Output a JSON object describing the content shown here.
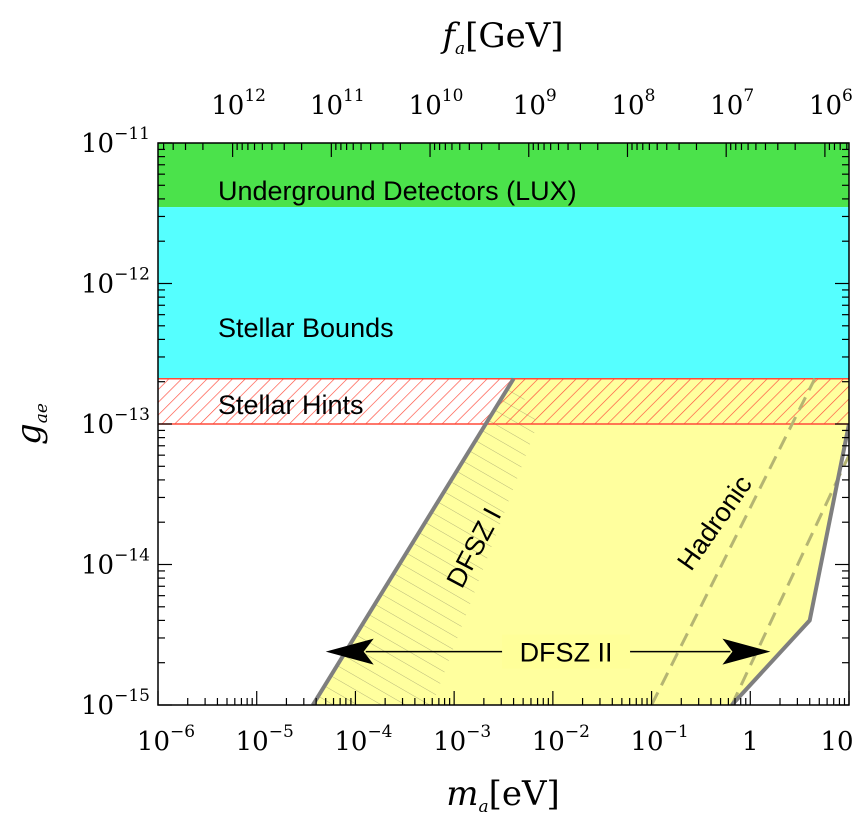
{
  "chart_data": {
    "type": "area",
    "title": "",
    "xlabel": "m",
    "xlabel_sub": "a",
    "xlabel_unit": "[eV]",
    "ylabel": "g",
    "ylabel_sub": "ae",
    "top_label": "f",
    "top_label_sub": "a",
    "top_label_unit": "[GeV]",
    "x_scale": "log",
    "y_scale": "log",
    "xlim": [
      1e-06,
      10
    ],
    "ylim": [
      1e-15,
      1e-11
    ],
    "grid": false,
    "legend": "none",
    "x_ticks": [
      {
        "value": 1e-06,
        "base": "10",
        "exp": "−6"
      },
      {
        "value": 1e-05,
        "base": "10",
        "exp": "−5"
      },
      {
        "value": 0.0001,
        "base": "10",
        "exp": "−4"
      },
      {
        "value": 0.001,
        "base": "10",
        "exp": "−3"
      },
      {
        "value": 0.01,
        "base": "10",
        "exp": "−2"
      },
      {
        "value": 0.1,
        "base": "10",
        "exp": "−1"
      },
      {
        "value": 1,
        "base": "1",
        "exp": ""
      },
      {
        "value": 10,
        "base": "10",
        "exp": ""
      }
    ],
    "y_ticks": [
      {
        "value": 1e-15,
        "base": "10",
        "exp": "−15"
      },
      {
        "value": 1e-14,
        "base": "10",
        "exp": "−14"
      },
      {
        "value": 1e-13,
        "base": "10",
        "exp": "−13"
      },
      {
        "value": 1e-12,
        "base": "10",
        "exp": "−12"
      },
      {
        "value": 1e-11,
        "base": "10",
        "exp": "−11"
      }
    ],
    "top_ticks": [
      {
        "fa_gev": 1000000000000.0,
        "ma_ev": 5.7e-06,
        "base": "10",
        "exp": "12"
      },
      {
        "fa_gev": 100000000000.0,
        "ma_ev": 5.7e-05,
        "base": "10",
        "exp": "11"
      },
      {
        "fa_gev": 10000000000.0,
        "ma_ev": 0.00057,
        "base": "10",
        "exp": "10"
      },
      {
        "fa_gev": 1000000000.0,
        "ma_ev": 0.0057,
        "base": "10",
        "exp": "9"
      },
      {
        "fa_gev": 100000000.0,
        "ma_ev": 0.057,
        "base": "10",
        "exp": "8"
      },
      {
        "fa_gev": 10000000.0,
        "ma_ev": 0.57,
        "base": "10",
        "exp": "7"
      },
      {
        "fa_gev": 1000000.0,
        "ma_ev": 5.7,
        "base": "10",
        "exp": "6"
      }
    ],
    "bands": [
      {
        "name": "Underground Detectors (LUX)",
        "y_range": [
          3.5e-12,
          1e-11
        ],
        "color": "#4be24b"
      },
      {
        "name": "Stellar Bounds",
        "y_range": [
          2.1e-13,
          3.5e-12
        ],
        "color": "#55ffff"
      },
      {
        "name": "Stellar Hints",
        "y_range": [
          1e-13,
          2.1e-13
        ],
        "color": "#ff4a3a",
        "style": "hatched"
      }
    ],
    "models": {
      "dfsz_region": [
        [
          3.7e-05,
          1e-15
        ],
        [
          0.004,
          2.1e-13
        ],
        [
          10,
          2.1e-13
        ],
        [
          10,
          1e-13
        ],
        [
          4,
          4e-15
        ],
        [
          0.65,
          1e-15
        ]
      ],
      "dfsz_i_hatched": [
        [
          3.7e-05,
          1e-15
        ],
        [
          0.004,
          2.1e-13
        ],
        [
          0.007,
          1e-13
        ],
        [
          0.0006,
          1e-15
        ]
      ],
      "hadronic_lines": [
        [
          [
            0.1,
            1e-15
          ],
          [
            4.5,
            2.1e-13
          ]
        ],
        [
          [
            0.65,
            1e-15
          ],
          [
            10,
            6e-14
          ]
        ]
      ],
      "color": "#ffff99",
      "dfsz_ii_arrow": {
        "x_range": [
          5e-05,
          1.6
        ],
        "y": 2.4e-15
      }
    },
    "labels": {
      "dfsz_i": "DFSZ I",
      "dfsz_ii": "DFSZ II",
      "hadronic": "Hadronic"
    }
  }
}
